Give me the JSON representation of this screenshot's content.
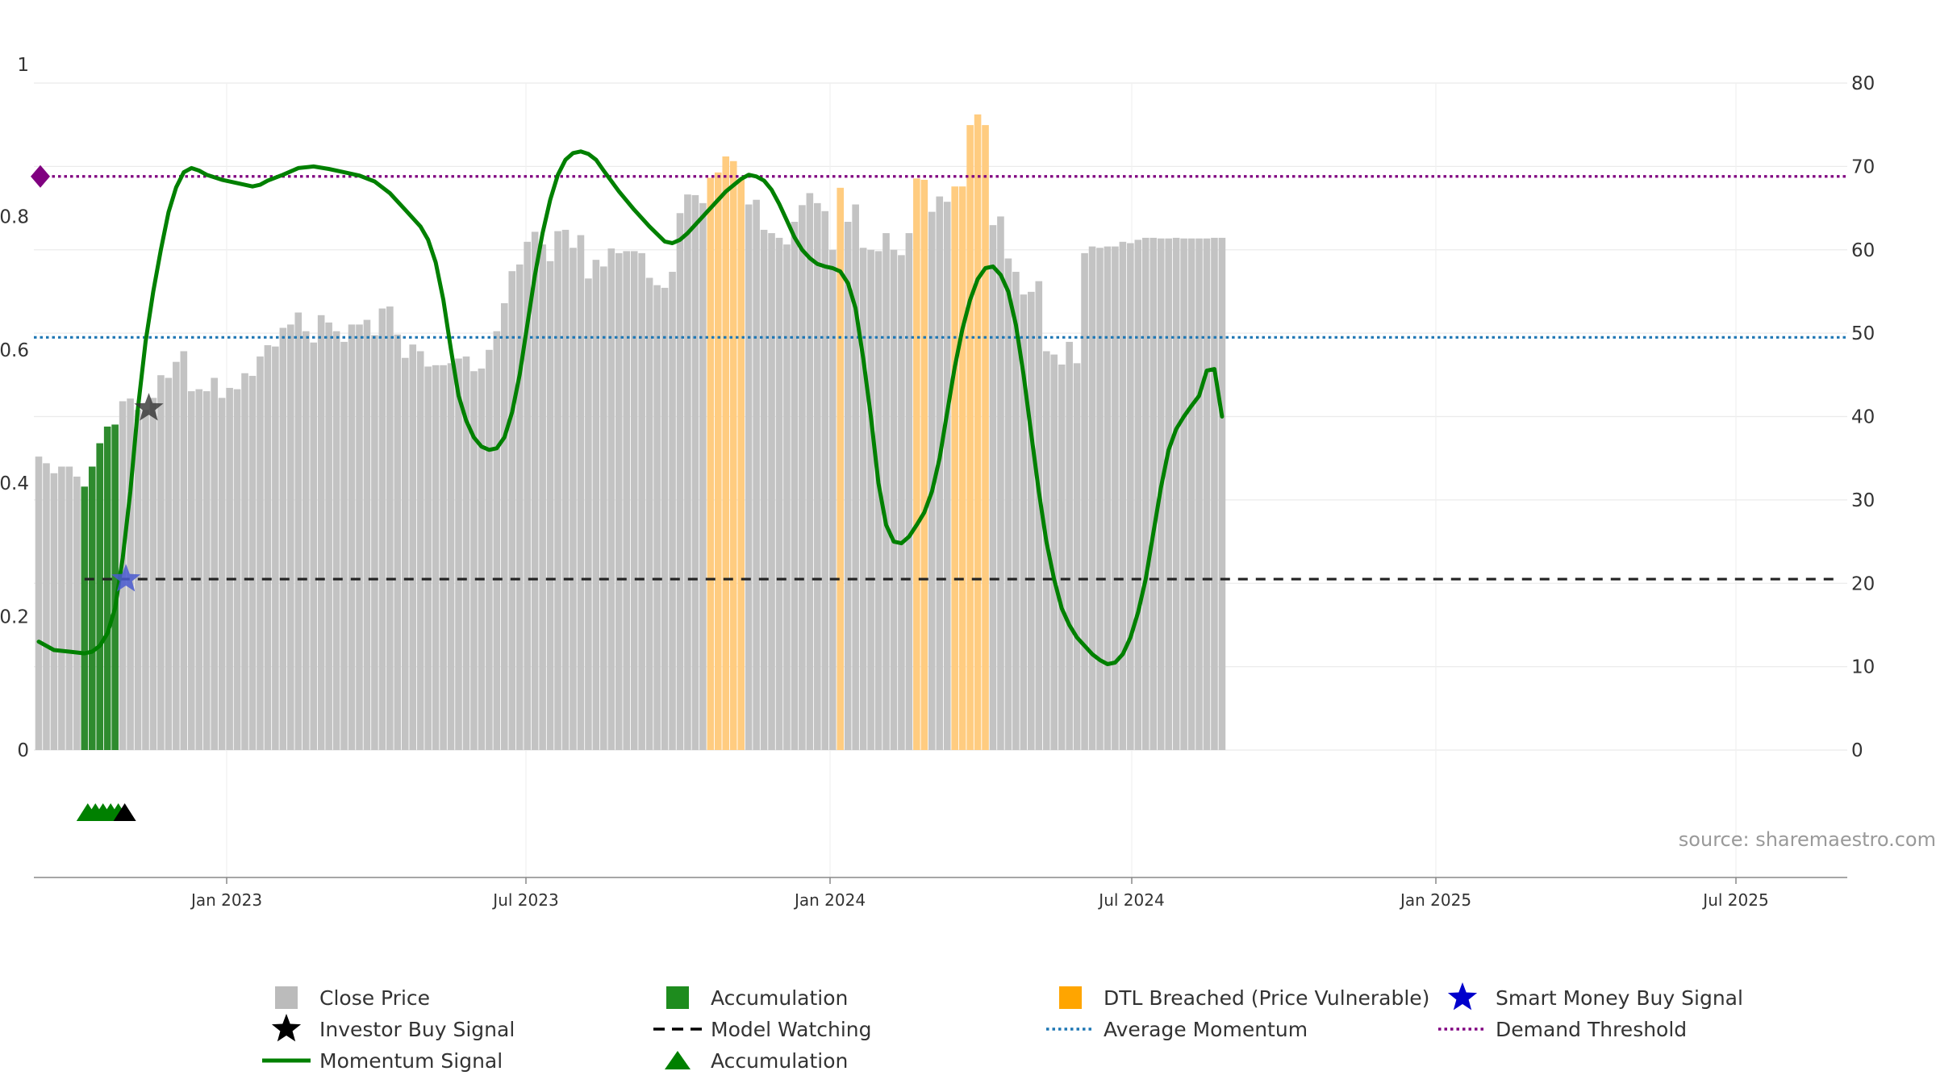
{
  "chart_data": {
    "type": "bar",
    "title": "",
    "xlabel": "",
    "ylabel": "",
    "source_text": "source: sharemaestro.com",
    "y_left": {
      "range": [
        0,
        1
      ],
      "ticks": [
        "0",
        "0.2",
        "0.4",
        "0.6",
        "0.8",
        "1"
      ]
    },
    "y_right": {
      "range": [
        0,
        80
      ],
      "ticks": [
        "0",
        "10",
        "20",
        "30",
        "40",
        "50",
        "60",
        "70",
        "80"
      ]
    },
    "x_ticks": [
      "Jan 2023",
      "Jul 2023",
      "Jan 2024",
      "Jul 2024",
      "Jan 2025",
      "Jul 2025"
    ],
    "close_price": [
      0.44,
      0.43,
      0.415,
      0.425,
      0.425,
      0.41,
      0.395,
      0.425,
      0.46,
      0.485,
      0.488,
      0.523,
      0.527,
      0.51,
      0.51,
      0.528,
      0.562,
      0.558,
      0.582,
      0.598,
      0.538,
      0.541,
      0.538,
      0.558,
      0.528,
      0.543,
      0.541,
      0.565,
      0.561,
      0.59,
      0.607,
      0.605,
      0.633,
      0.638,
      0.656,
      0.628,
      0.611,
      0.652,
      0.641,
      0.628,
      0.612,
      0.638,
      0.638,
      0.645,
      0.622,
      0.662,
      0.665,
      0.623,
      0.588,
      0.608,
      0.598,
      0.575,
      0.577,
      0.577,
      0.58,
      0.587,
      0.59,
      0.568,
      0.572,
      0.6,
      0.628,
      0.67,
      0.718,
      0.728,
      0.762,
      0.777,
      0.758,
      0.733,
      0.778,
      0.78,
      0.753,
      0.772,
      0.707,
      0.735,
      0.725,
      0.752,
      0.745,
      0.748,
      0.748,
      0.745,
      0.708,
      0.697,
      0.693,
      0.717,
      0.805,
      0.833,
      0.832,
      0.82,
      0.858,
      0.866,
      0.89,
      0.883,
      0.855,
      0.818,
      0.825,
      0.78,
      0.775,
      0.768,
      0.758,
      0.792,
      0.817,
      0.835,
      0.82,
      0.808,
      0.75,
      0.843,
      0.792,
      0.818,
      0.753,
      0.75,
      0.748,
      0.775,
      0.75,
      0.742,
      0.775,
      0.857,
      0.855,
      0.807,
      0.83,
      0.822,
      0.845,
      0.845,
      0.937,
      0.953,
      0.937,
      0.787,
      0.8,
      0.737,
      0.717,
      0.683,
      0.687,
      0.703,
      0.598,
      0.593,
      0.578,
      0.612,
      0.58,
      0.745,
      0.755,
      0.753,
      0.755,
      0.755,
      0.762,
      0.76,
      0.765,
      0.768,
      0.768,
      0.767,
      0.767,
      0.768,
      0.767,
      0.767,
      0.767,
      0.767,
      0.768,
      0.768
    ],
    "accumulation_bars": [
      6,
      7,
      8,
      9,
      10
    ],
    "dtl_breached_bars": [
      88,
      89,
      90,
      91,
      92,
      105,
      115,
      116,
      120,
      121,
      122,
      123,
      124
    ],
    "momentum_signal": [
      [
        0,
        13.0
      ],
      [
        2,
        12.0
      ],
      [
        4,
        11.8
      ],
      [
        6,
        11.6
      ],
      [
        7,
        11.8
      ],
      [
        8,
        12.5
      ],
      [
        9,
        14.0
      ],
      [
        10,
        17.0
      ],
      [
        11,
        23.0
      ],
      [
        12,
        31.0
      ],
      [
        13,
        41.0
      ],
      [
        14,
        49.0
      ],
      [
        15,
        55.0
      ],
      [
        16,
        60.0
      ],
      [
        17,
        64.5
      ],
      [
        18,
        67.5
      ],
      [
        19,
        69.3
      ],
      [
        20,
        69.8
      ],
      [
        21,
        69.5
      ],
      [
        22,
        69.0
      ],
      [
        24,
        68.4
      ],
      [
        26,
        68.0
      ],
      [
        28,
        67.6
      ],
      [
        29,
        67.8
      ],
      [
        30,
        68.3
      ],
      [
        32,
        69.0
      ],
      [
        34,
        69.8
      ],
      [
        36,
        70.0
      ],
      [
        38,
        69.7
      ],
      [
        40,
        69.3
      ],
      [
        42,
        68.9
      ],
      [
        44,
        68.2
      ],
      [
        46,
        66.8
      ],
      [
        48,
        64.8
      ],
      [
        50,
        62.8
      ],
      [
        51,
        61.2
      ],
      [
        52,
        58.5
      ],
      [
        53,
        54.0
      ],
      [
        54,
        48.0
      ],
      [
        55,
        42.5
      ],
      [
        56,
        39.5
      ],
      [
        57,
        37.5
      ],
      [
        58,
        36.4
      ],
      [
        59,
        36.0
      ],
      [
        60,
        36.2
      ],
      [
        61,
        37.5
      ],
      [
        62,
        40.5
      ],
      [
        63,
        45.0
      ],
      [
        64,
        51.0
      ],
      [
        65,
        57.0
      ],
      [
        66,
        62.0
      ],
      [
        67,
        66.0
      ],
      [
        68,
        69.0
      ],
      [
        69,
        70.8
      ],
      [
        70,
        71.6
      ],
      [
        71,
        71.8
      ],
      [
        72,
        71.5
      ],
      [
        73,
        70.8
      ],
      [
        74,
        69.5
      ],
      [
        76,
        67.0
      ],
      [
        78,
        64.8
      ],
      [
        80,
        62.8
      ],
      [
        82,
        61.0
      ],
      [
        83,
        60.8
      ],
      [
        84,
        61.2
      ],
      [
        85,
        62.0
      ],
      [
        86,
        63.0
      ],
      [
        88,
        65.0
      ],
      [
        90,
        67.0
      ],
      [
        92,
        68.5
      ],
      [
        93,
        69.0
      ],
      [
        94,
        68.8
      ],
      [
        95,
        68.3
      ],
      [
        96,
        67.2
      ],
      [
        97,
        65.5
      ],
      [
        98,
        63.5
      ],
      [
        99,
        61.5
      ],
      [
        100,
        60.0
      ],
      [
        101,
        59.0
      ],
      [
        102,
        58.3
      ],
      [
        103,
        58.0
      ],
      [
        104,
        57.8
      ],
      [
        105,
        57.4
      ],
      [
        106,
        56.0
      ],
      [
        107,
        53.0
      ],
      [
        108,
        47.0
      ],
      [
        109,
        40.0
      ],
      [
        110,
        32.0
      ],
      [
        111,
        27.0
      ],
      [
        112,
        25.0
      ],
      [
        113,
        24.8
      ],
      [
        114,
        25.6
      ],
      [
        115,
        27.0
      ],
      [
        116,
        28.5
      ],
      [
        117,
        31.0
      ],
      [
        118,
        35.0
      ],
      [
        119,
        40.5
      ],
      [
        120,
        46.0
      ],
      [
        121,
        50.5
      ],
      [
        122,
        54.0
      ],
      [
        123,
        56.5
      ],
      [
        124,
        57.8
      ],
      [
        125,
        58.0
      ],
      [
        126,
        57.0
      ],
      [
        127,
        55.0
      ],
      [
        128,
        51.0
      ],
      [
        129,
        45.0
      ],
      [
        130,
        38.0
      ],
      [
        131,
        31.0
      ],
      [
        132,
        25.0
      ],
      [
        133,
        20.5
      ],
      [
        134,
        17.0
      ],
      [
        135,
        15.0
      ],
      [
        136,
        13.5
      ],
      [
        137,
        12.5
      ],
      [
        138,
        11.5
      ],
      [
        139,
        10.8
      ],
      [
        140,
        10.3
      ],
      [
        141,
        10.5
      ],
      [
        142,
        11.5
      ],
      [
        143,
        13.5
      ],
      [
        144,
        16.5
      ],
      [
        145,
        20.5
      ],
      [
        146,
        26.0
      ],
      [
        147,
        31.5
      ],
      [
        148,
        36.0
      ],
      [
        149,
        38.5
      ],
      [
        150,
        40.0
      ],
      [
        151,
        41.3
      ],
      [
        152,
        42.5
      ],
      [
        153,
        45.5
      ],
      [
        154,
        45.7
      ],
      [
        155,
        40.0
      ]
    ],
    "model_watching_level": 20.5,
    "model_watching_start_bar": 6,
    "average_momentum_level": 49.5,
    "demand_threshold_level": 68.8,
    "investor_buy_signal": [
      {
        "bar": 14,
        "value": 41.0
      }
    ],
    "smart_money_buy_signal": [
      {
        "bar": 11,
        "value": 20.5
      }
    ],
    "accumulation_markers": [
      6,
      7,
      8,
      9,
      10
    ],
    "investor_marker_bar": 10,
    "series_legend": [
      {
        "name": "Close Price",
        "color": "#bbbbbb",
        "symbol": "square"
      },
      {
        "name": "Accumulation",
        "color": "#1e8c1e",
        "symbol": "square"
      },
      {
        "name": "DTL Breached (Price Vulnerable)",
        "color": "#ffa500",
        "symbol": "square"
      },
      {
        "name": "Smart Money Buy Signal",
        "color": "#0000cc",
        "symbol": "star"
      },
      {
        "name": "Investor Buy Signal",
        "color": "#000000",
        "symbol": "star"
      },
      {
        "name": "Model Watching",
        "color": "#000000",
        "symbol": "dash"
      },
      {
        "name": "Average Momentum",
        "color": "#1f77b4",
        "symbol": "dotted"
      },
      {
        "name": "Demand Threshold",
        "color": "#800080",
        "symbol": "dotted"
      },
      {
        "name": "Momentum Signal",
        "color": "#008000",
        "symbol": "line"
      },
      {
        "name": "Accumulation",
        "color": "#008000",
        "symbol": "triangle"
      }
    ],
    "colors": {
      "close_price": "#c3c3c3",
      "accumulation": "#2e8b2e",
      "dtl": "#ffcc80",
      "momentum": "#008000",
      "model_watching": "#222222",
      "average_momentum": "#1f77b4",
      "demand_threshold": "#800080",
      "smart_money": "#4a5bd0",
      "investor": "#333333",
      "grid": "#ebebeb"
    }
  }
}
